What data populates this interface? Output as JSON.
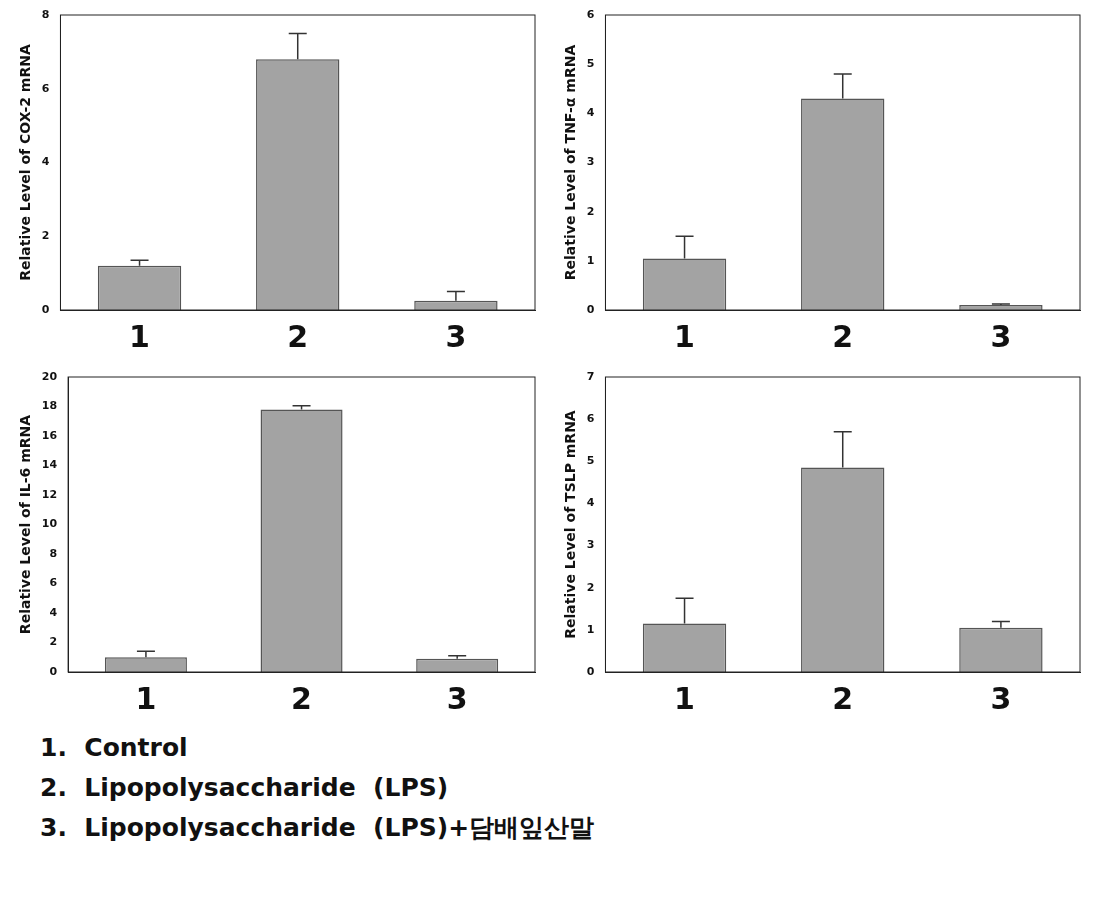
{
  "chart_data": [
    {
      "type": "bar",
      "y_label": "Relative Level of COX-2 mRNA",
      "categories": [
        "1",
        "2",
        "3"
      ],
      "values": [
        1.2,
        6.8,
        0.25
      ],
      "errors": [
        0.15,
        0.7,
        0.25
      ],
      "color": "#a3a3a3",
      "ylim": [
        0,
        8
      ],
      "yticks": [
        0,
        2,
        4,
        6,
        8
      ],
      "grid": false
    },
    {
      "type": "bar",
      "y_label": "Relative Level of TNF-α mRNA",
      "categories": [
        "1",
        "2",
        "3"
      ],
      "values": [
        1.05,
        4.3,
        0.1
      ],
      "errors": [
        0.45,
        0.5,
        0.02
      ],
      "color": "#a3a3a3",
      "ylim": [
        0,
        6
      ],
      "yticks": [
        0,
        1,
        2,
        3,
        4,
        5,
        6
      ],
      "grid": false
    },
    {
      "type": "bar",
      "y_label": "Relative Level of IL-6 mRNA",
      "categories": [
        "1",
        "2",
        "3"
      ],
      "values": [
        1.0,
        17.8,
        0.9
      ],
      "errors": [
        0.4,
        0.25,
        0.2
      ],
      "color": "#a3a3a3",
      "ylim": [
        0,
        20
      ],
      "yticks": [
        0,
        2,
        4,
        6,
        8,
        10,
        12,
        14,
        16,
        18,
        20
      ],
      "grid": false
    },
    {
      "type": "bar",
      "y_label": "Relative Level of TSLP mRNA",
      "categories": [
        "1",
        "2",
        "3"
      ],
      "values": [
        1.15,
        4.85,
        1.05
      ],
      "errors": [
        0.6,
        0.85,
        0.15
      ],
      "color": "#a3a3a3",
      "ylim": [
        0,
        7
      ],
      "yticks": [
        0,
        1,
        2,
        3,
        4,
        5,
        6,
        7
      ],
      "grid": false
    }
  ],
  "caption": [
    "1.  Control",
    "2.  Lipopolysaccharide  (LPS)",
    "3.  Lipopolysaccharide  (LPS)+담배잎산말"
  ]
}
